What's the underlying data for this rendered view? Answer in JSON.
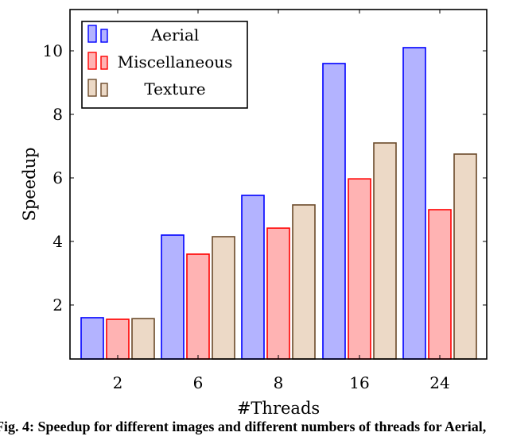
{
  "chart_data": {
    "type": "bar",
    "categories": [
      "2",
      "6",
      "8",
      "16",
      "24"
    ],
    "series": [
      {
        "name": "Aerial",
        "values": [
          1.6,
          4.2,
          5.45,
          9.6,
          10.1
        ],
        "fill": "#b3b3ff",
        "stroke": "#0000ff"
      },
      {
        "name": "Miscellaneous",
        "values": [
          1.55,
          3.6,
          4.42,
          5.97,
          5.0
        ],
        "fill": "#ffb3b3",
        "stroke": "#ff0000"
      },
      {
        "name": "Texture",
        "values": [
          1.57,
          4.15,
          5.15,
          7.1,
          6.75
        ],
        "fill": "#ecd9c6",
        "stroke": "#6b4a2a"
      }
    ],
    "xlabel": "#Threads",
    "ylabel": "Speedup",
    "ylim": [
      0.3,
      11.3
    ],
    "yticks": [
      2,
      4,
      6,
      8,
      10
    ],
    "legend_position": "top-left"
  },
  "caption": "Fig. 4: Speedup for different images and different numbers of threads for Aerial,"
}
